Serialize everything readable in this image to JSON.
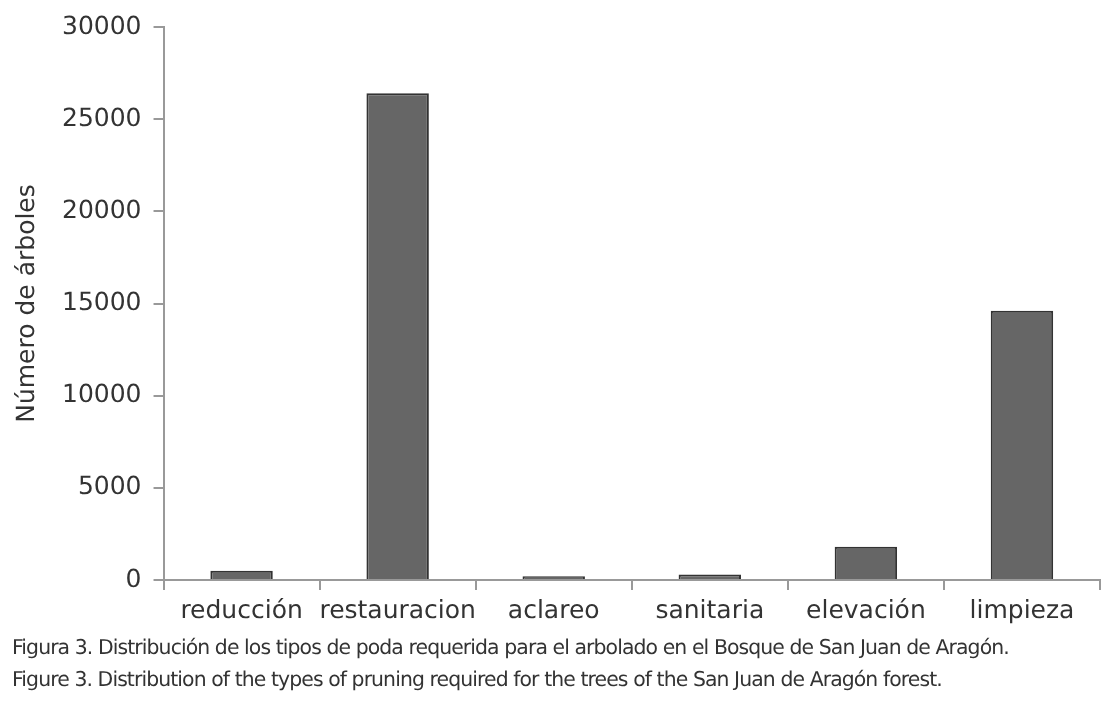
{
  "chart_data": {
    "type": "bar",
    "ylabel": "Número de árboles",
    "categories": [
      "reducción",
      "restauracion",
      "aclareo",
      "sanitaria",
      "elevación",
      "limpieza"
    ],
    "values": [
      500,
      26400,
      200,
      300,
      1800,
      14600
    ],
    "color": "#666666",
    "ylim": [
      0,
      30000
    ],
    "yticks": [
      0,
      5000,
      10000,
      15000,
      20000,
      25000,
      30000
    ],
    "grid": false,
    "legend": false,
    "annotations": [
      "Figura 3. Distribución de los tipos de poda requerida para el arbolado en el Bosque de San Juan de Aragón.",
      "Figure 3. Distribution of the types of pruning required for the trees of the San Juan de Aragón forest."
    ]
  }
}
